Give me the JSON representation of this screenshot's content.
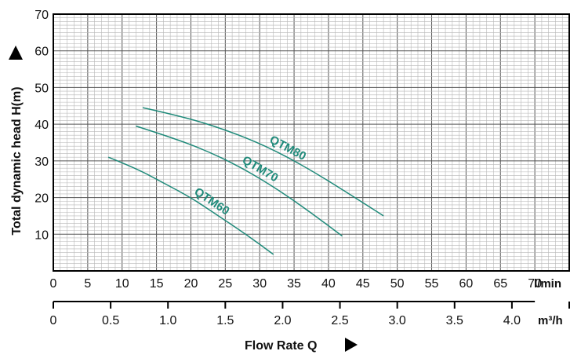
{
  "chart_data": {
    "type": "line",
    "xlabel": "Flow Rate Q",
    "ylabel": "Total dynamic head H(m)",
    "x_unit_primary": "l/min",
    "x_unit_secondary": "m³/h",
    "xlim": [
      0,
      75
    ],
    "ylim": [
      0,
      70
    ],
    "x_ticks": [
      "0",
      "5",
      "10",
      "15",
      "20",
      "25",
      "30",
      "35",
      "40",
      "45",
      "50",
      "55",
      "60",
      "65",
      "70"
    ],
    "x_secondary_ticks": [
      "0",
      "0.5",
      "1.0",
      "1.5",
      "2.0",
      "2.5",
      "3.0",
      "3.5",
      "4.0"
    ],
    "y_ticks": [
      "10",
      "20",
      "30",
      "40",
      "50",
      "60",
      "70"
    ],
    "grid": true,
    "series": [
      {
        "name": "QTM60",
        "color": "#1f8a7a",
        "x": [
          8,
          12,
          16,
          20,
          24,
          28,
          32
        ],
        "y": [
          31,
          28,
          24,
          20,
          15,
          10,
          4.5
        ]
      },
      {
        "name": "QTM70",
        "color": "#1f8a7a",
        "x": [
          12,
          17,
          22,
          27,
          32,
          37,
          42
        ],
        "y": [
          39.5,
          36.5,
          33,
          28.5,
          23,
          16.5,
          9.5
        ]
      },
      {
        "name": "QTM80",
        "color": "#1f8a7a",
        "x": [
          13,
          19,
          25,
          31,
          37,
          43,
          48
        ],
        "y": [
          44.5,
          42,
          38.5,
          34,
          28,
          21,
          15
        ]
      }
    ]
  }
}
